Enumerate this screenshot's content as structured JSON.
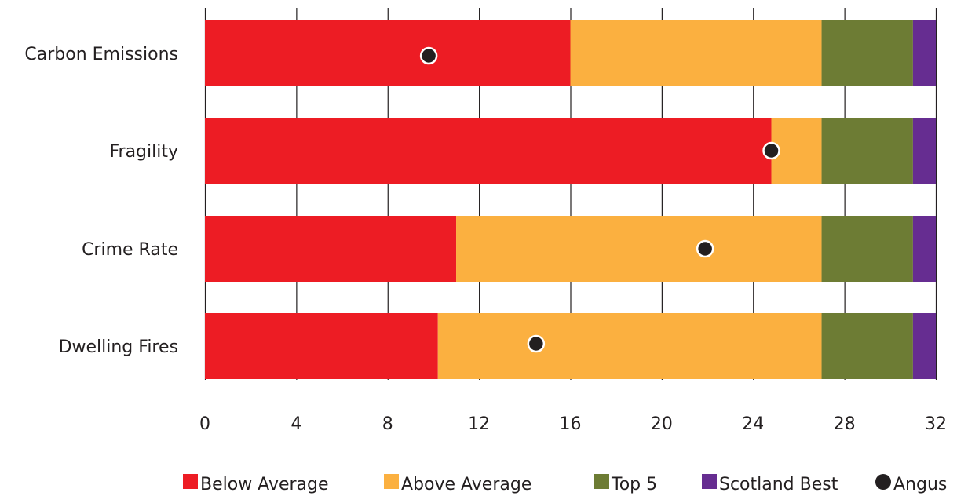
{
  "chart_data": {
    "type": "bar",
    "orientation": "horizontal",
    "stacked": true,
    "categories": [
      "Carbon Emissions",
      "Fragility",
      "Crime Rate",
      "Dwelling Fires"
    ],
    "series": [
      {
        "name": "Below Average",
        "color": "#ed1c24",
        "values": [
          16,
          24.8,
          11,
          10.2
        ]
      },
      {
        "name": "Above Average",
        "color": "#fbb040",
        "values": [
          11,
          2.2,
          16,
          16.8
        ]
      },
      {
        "name": "Top 5",
        "color": "#6d7c34",
        "values": [
          4,
          4,
          4,
          4
        ]
      },
      {
        "name": "Scotland Best",
        "color": "#662d91",
        "values": [
          1,
          1,
          1,
          1
        ]
      }
    ],
    "markers": {
      "name": "Angus",
      "color": "#231f20",
      "values": [
        9.8,
        24.8,
        21.9,
        14.5
      ]
    },
    "x_ticks": [
      "0",
      "4",
      "8",
      "12",
      "16",
      "20",
      "24",
      "28",
      "32"
    ],
    "xlim": [
      0,
      32
    ],
    "xlabel": "",
    "ylabel": "",
    "title": "",
    "grid": "vertical",
    "legend_position": "bottom"
  }
}
